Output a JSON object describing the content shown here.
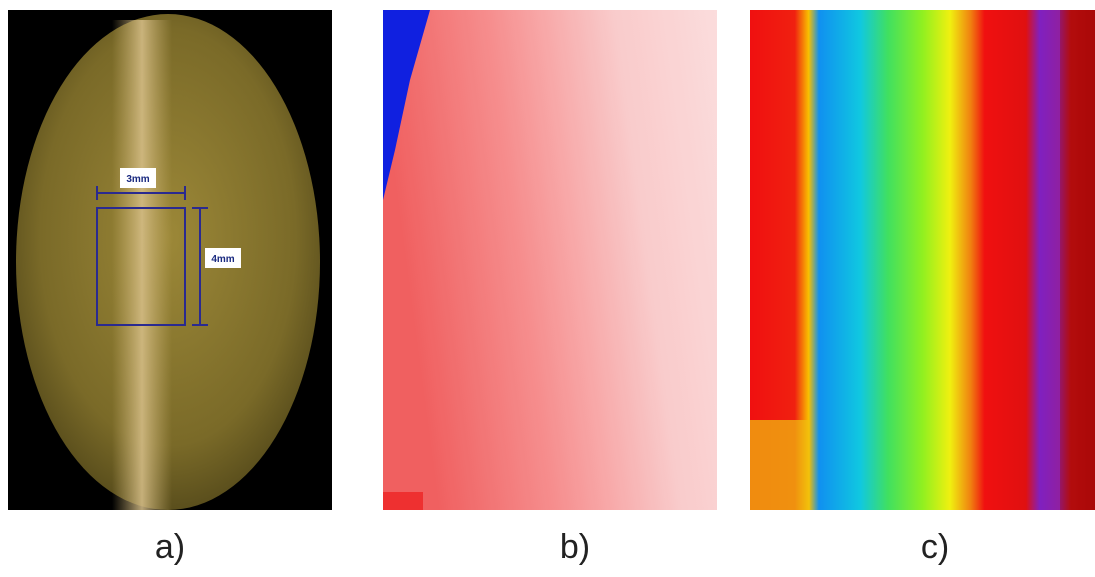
{
  "panels": [
    {
      "label": "a)",
      "annotations": [
        "3mm",
        "4mm"
      ]
    },
    {
      "label": "b)"
    },
    {
      "label": "c)"
    }
  ]
}
